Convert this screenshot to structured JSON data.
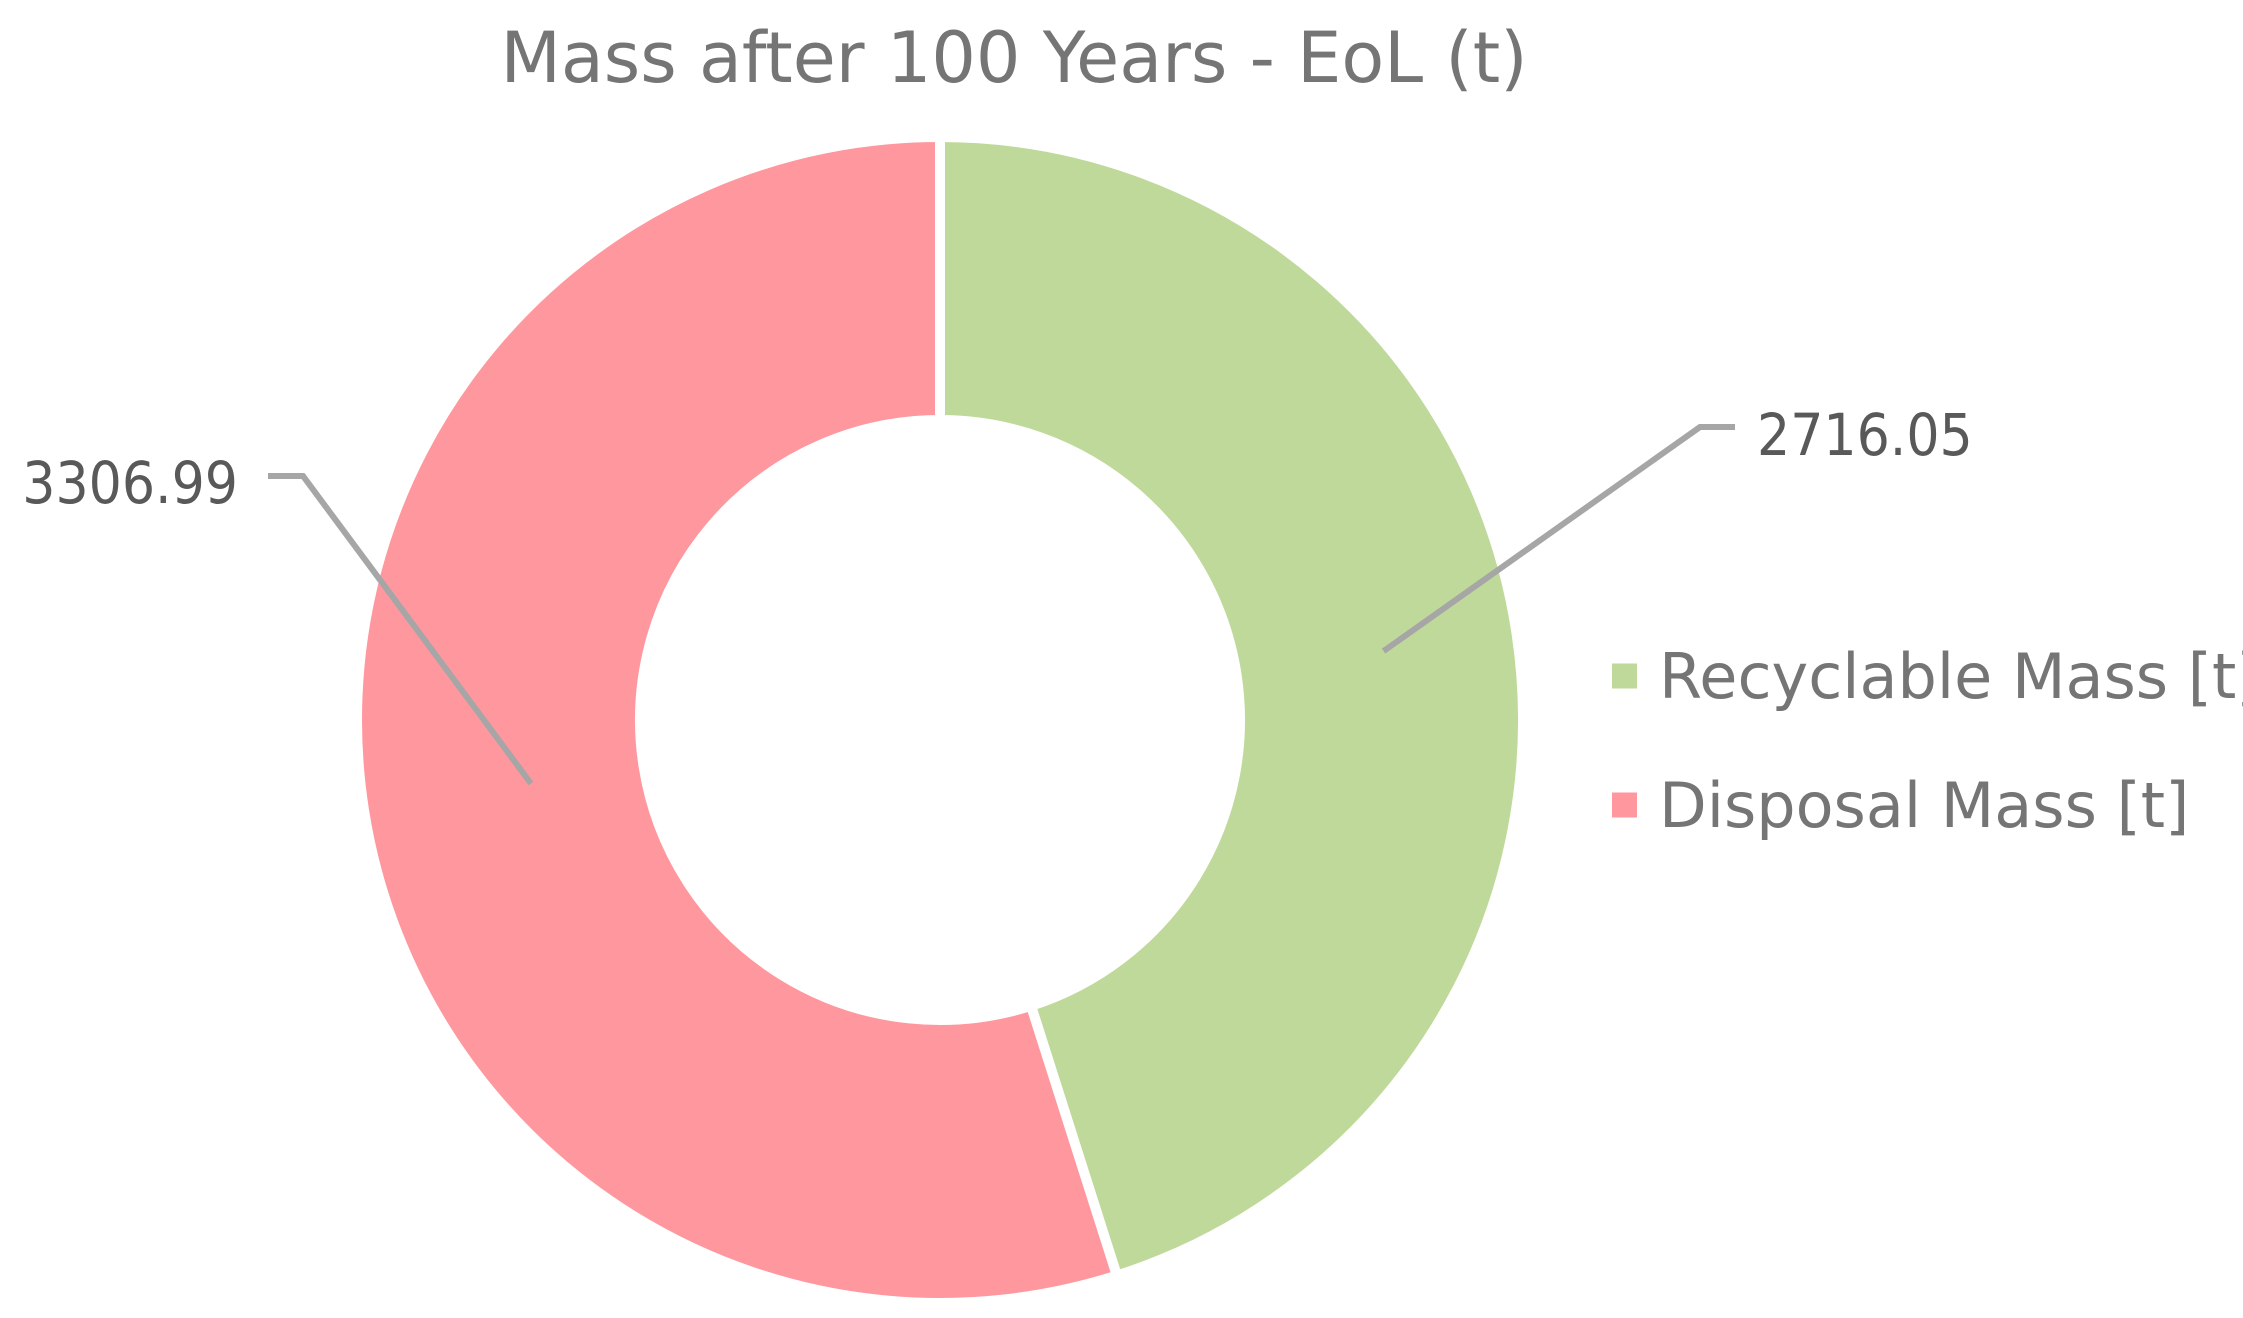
{
  "chart_data": {
    "type": "pie",
    "variant": "donut",
    "title": "Mass after 100 Years - EoL (t)",
    "series": [
      {
        "name": "Mass",
        "slices": [
          {
            "label": "Recyclable Mass [t]",
            "value": 2716.05,
            "value_label": "2716.05",
            "color": "#bfd99a"
          },
          {
            "label": "Disposal Mass [t]",
            "value": 3306.99,
            "value_label": "3306.99",
            "color": "#ff979e"
          }
        ]
      }
    ],
    "start_angle_deg": 0,
    "direction": "clockwise",
    "data_labels": "outside-with-leader-lines",
    "legend_position": "right",
    "leader_line_color": "#a6a6a6"
  }
}
